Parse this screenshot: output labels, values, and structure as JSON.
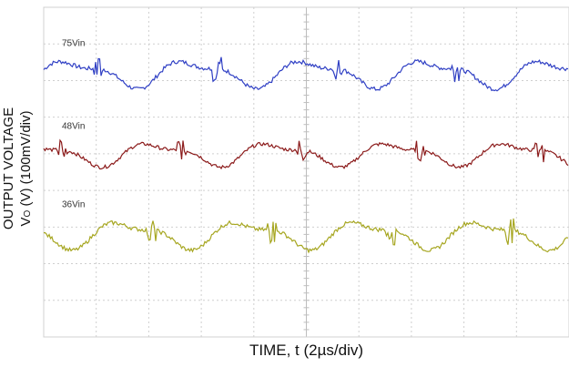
{
  "chart_data": {
    "type": "line",
    "title": "",
    "xlabel": "TIME, t (2µs/div)",
    "ylabel_line1": "OUTPUT VOLTAGE",
    "ylabel_line2": "(V) (100mV/div)",
    "ylabel_symbol": "V",
    "ylabel_subscript": "O",
    "x_divisions": 10,
    "y_divisions": 9,
    "x_unit_per_div": "2µs",
    "y_unit_per_div": "100mV",
    "grid": true,
    "legend": "none",
    "series": [
      {
        "name": "75Vin",
        "color": "#2f3fc4",
        "offset_div": 1.8,
        "amplitude_div": 0.45,
        "period_div": 2.27,
        "phase": 0.0
      },
      {
        "name": "48Vin",
        "color": "#8b1a1a",
        "offset_div": 4.0,
        "amplitude_div": 0.38,
        "period_div": 2.27,
        "phase": 0.3
      },
      {
        "name": "36Vin",
        "color": "#a6a620",
        "offset_div": 6.2,
        "amplitude_div": 0.45,
        "period_div": 2.27,
        "phase": 0.55
      }
    ]
  }
}
